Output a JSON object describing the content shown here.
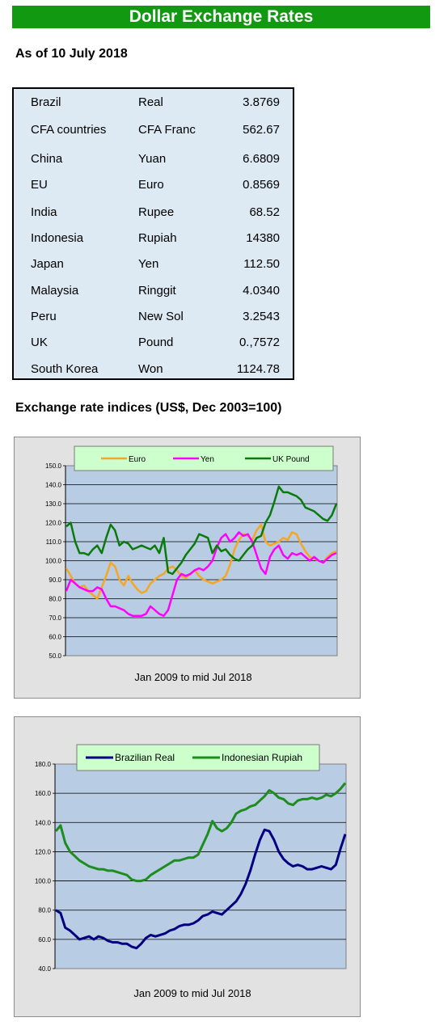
{
  "title": "Dollar Exchange Rates",
  "as_of": "As of 10 July 2018",
  "rates": [
    {
      "country": "Brazil",
      "currency": "Real",
      "rate": "3.8769"
    },
    {
      "country": "CFA countries",
      "currency": "CFA Franc",
      "rate": "562.67"
    },
    {
      "country": "China",
      "currency": "Yuan",
      "rate": "6.6809"
    },
    {
      "country": "EU",
      "currency": "Euro",
      "rate": "0.8569"
    },
    {
      "country": "India",
      "currency": "Rupee",
      "rate": "68.52"
    },
    {
      "country": "Indonesia",
      "currency": "Rupiah",
      "rate": "14380"
    },
    {
      "country": "Japan",
      "currency": "Yen",
      "rate": "112.50"
    },
    {
      "country": "Malaysia",
      "currency": "Ringgit",
      "rate": "4.0340"
    },
    {
      "country": "Peru",
      "currency": "New Sol",
      "rate": "3.2543"
    },
    {
      "country": "UK",
      "currency": "Pound",
      "rate": "0.,7572"
    },
    {
      "country": "South Korea",
      "currency": "Won",
      "rate": "1124.78"
    }
  ],
  "indices_title": "Exchange rate indices (US$, Dec 2003=100)",
  "colors": {
    "euro": "#f5a623",
    "yen": "#ff00ff",
    "pound": "#0a7a0a",
    "real": "#000080",
    "rupiah": "#1e8c1e",
    "plot_bg": "#b8cce4",
    "legend_bg": "#ccffcc"
  },
  "chart_data": [
    {
      "type": "line",
      "xlabel": "Jan 2009  to mid Jul 2018",
      "ylim": [
        50,
        150
      ],
      "yticks": [
        "150.0",
        "140.0",
        "130.0",
        "120.0",
        "110.0",
        "100.0",
        "90.0",
        "80.0",
        "70.0",
        "60.0",
        "50.0"
      ],
      "legend_position": "top",
      "series": [
        {
          "name": "Euro",
          "color_key": "euro",
          "values": [
            96,
            92,
            88,
            86,
            87,
            84,
            82,
            80,
            86,
            92,
            99,
            97,
            90,
            87,
            92,
            88,
            85,
            83,
            84,
            88,
            90,
            92,
            93,
            96,
            97,
            95,
            92,
            91,
            93,
            95,
            92,
            90,
            89,
            88,
            89,
            90,
            92,
            98,
            106,
            111,
            114,
            113,
            111,
            116,
            119,
            110,
            108,
            109,
            110,
            112,
            111,
            115,
            114,
            109,
            105,
            102,
            101,
            100,
            99,
            102,
            104,
            105
          ]
        },
        {
          "name": "Yen",
          "color_key": "yen",
          "values": [
            84,
            90,
            88,
            86,
            85,
            84,
            84,
            86,
            85,
            80,
            76,
            76,
            75,
            74,
            72,
            71,
            71,
            71,
            72,
            76,
            74,
            72,
            71,
            74,
            82,
            90,
            93,
            92,
            93,
            95,
            96,
            95,
            97,
            100,
            107,
            112,
            114,
            110,
            112,
            115,
            113,
            114,
            110,
            103,
            96,
            93,
            102,
            106,
            108,
            103,
            101,
            104,
            103,
            104,
            102,
            100,
            102,
            100,
            99,
            101,
            103,
            104
          ]
        },
        {
          "name": "UK Pound",
          "color_key": "pound",
          "values": [
            118,
            120,
            110,
            104,
            104,
            103,
            106,
            108,
            104,
            112,
            119,
            116,
            108,
            110,
            109,
            106,
            107,
            108,
            107,
            106,
            108,
            104,
            112,
            94,
            93,
            96,
            99,
            103,
            106,
            109,
            114,
            113,
            112,
            104,
            108,
            105,
            106,
            103,
            101,
            100,
            103,
            106,
            108,
            112,
            113,
            120,
            124,
            131,
            139,
            136,
            136,
            135,
            134,
            132,
            128,
            127,
            126,
            124,
            122,
            121,
            124,
            130
          ]
        }
      ]
    },
    {
      "type": "line",
      "xlabel": "Jan 2009  to mid Jul 2018",
      "ylim": [
        40,
        180
      ],
      "yticks": [
        "180.0",
        "160.0",
        "140.0",
        "120.0",
        "100.0",
        "80.0",
        "60.0",
        "40.0"
      ],
      "legend_position": "top",
      "series": [
        {
          "name": "Brazilian Real",
          "color_key": "real",
          "values": [
            80,
            78,
            68,
            66,
            63,
            60,
            61,
            62,
            60,
            62,
            61,
            59,
            58,
            58,
            57,
            57,
            55,
            54,
            57,
            61,
            63,
            62,
            63,
            64,
            66,
            67,
            69,
            70,
            70,
            71,
            73,
            76,
            77,
            79,
            78,
            77,
            80,
            83,
            86,
            91,
            98,
            107,
            118,
            128,
            135,
            134,
            128,
            120,
            115,
            112,
            110,
            111,
            110,
            108,
            108,
            109,
            110,
            109,
            108,
            111,
            122,
            132
          ]
        },
        {
          "name": "Indonesian Rupiah",
          "color_key": "rupiah",
          "values": [
            134,
            138,
            126,
            120,
            117,
            114,
            112,
            110,
            109,
            108,
            108,
            107,
            107,
            106,
            105,
            104,
            101,
            100,
            100,
            101,
            104,
            106,
            108,
            110,
            112,
            114,
            114,
            115,
            116,
            116,
            118,
            125,
            132,
            141,
            136,
            134,
            136,
            140,
            146,
            148,
            149,
            151,
            152,
            155,
            158,
            162,
            160,
            157,
            156,
            153,
            152,
            155,
            156,
            156,
            157,
            156,
            157,
            159,
            158,
            160,
            163,
            167
          ]
        }
      ]
    }
  ]
}
